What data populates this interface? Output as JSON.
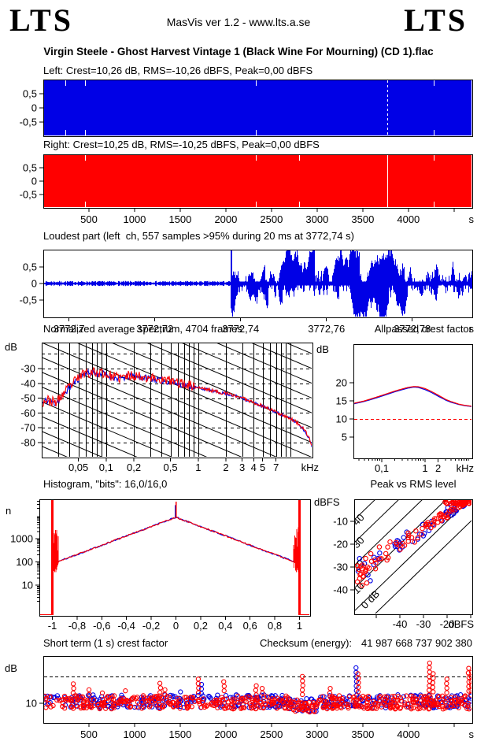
{
  "header": {
    "logo_left": "LTS",
    "logo_right": "LTS",
    "app_line": "MasVis ver 1.2 - www.lts.a.se",
    "file_title": "Virgin Steele - Ghost Harvest Vintage 1 (Black Wine For Mourning) (CD 1).flac"
  },
  "colors": {
    "left_channel": "#0000e6",
    "right_channel": "#ff0000",
    "grid": "#000000",
    "threshold": "#ff0000"
  },
  "chart_data": [
    {
      "id": "wave-left",
      "type": "waveform-overview",
      "channel": "left",
      "title": "Left: Crest=10,26 dB, RMS=-10,26 dBFS, Peak=0,00 dBFS",
      "color": "#0000e6",
      "xlim": [
        0,
        4700
      ],
      "ylim": [
        -1,
        1
      ],
      "yticks": {
        "values": [
          0.5,
          0,
          -0.5
        ],
        "labels": [
          "0,5",
          "0",
          "-0,5"
        ]
      },
      "gap_times": [
        241,
        457,
        2328,
        4277
      ],
      "marker_time": 3772.74,
      "marker_style": "dashed"
    },
    {
      "id": "wave-right",
      "type": "waveform-overview",
      "channel": "right",
      "title": "Right: Crest=10,25 dB, RMS=-10,25 dBFS, Peak=0,00 dBFS",
      "color": "#ff0000",
      "xlim": [
        0,
        4700
      ],
      "ylim": [
        -1,
        1
      ],
      "yticks": {
        "values": [
          0.5,
          0,
          -0.5
        ],
        "labels": [
          "0,5",
          "0",
          "-0,5"
        ]
      },
      "xticks": {
        "values": [
          500,
          1000,
          1500,
          2000,
          2500,
          3000,
          3500,
          4000,
          4500
        ],
        "labels": [
          "500",
          "1000",
          "1500",
          "2000",
          "2500",
          "3000",
          "3500",
          "4000",
          ""
        ]
      },
      "xlabel": "s",
      "gap_times": [
        457,
        2328,
        2803,
        4277
      ],
      "marker_time": 3772.74,
      "marker_style": "solid"
    },
    {
      "id": "loudest",
      "type": "waveform-zoom",
      "title": "Loudest part (left  ch, 557 samples >95% during 20 ms at 3772,74 s)",
      "color": "#0000e6",
      "xlim": [
        3772.694,
        3772.794
      ],
      "ylim": [
        -1,
        1
      ],
      "quiet_until": 3772.7375,
      "quiet_amplitude": 0.06,
      "yticks": {
        "values": [
          0.5,
          0,
          -0.5
        ],
        "labels": [
          "0,5",
          "0",
          "-0,5"
        ]
      },
      "xticks": {
        "values": [
          3772.7,
          3772.72,
          3772.74,
          3772.76,
          3772.78
        ],
        "labels": [
          "3772,7",
          "3772,72",
          "3772,74",
          "3772,76",
          "3772,78"
        ]
      },
      "xlabel": "s",
      "seed": 7
    },
    {
      "id": "spectrum",
      "type": "spectrum",
      "title": "Normalized average spectrum, 4704 frames",
      "ylabel": "dB",
      "xlabel": "kHz",
      "xlog": true,
      "xlim": [
        0.02,
        17.5
      ],
      "ylim": [
        -90,
        -12.3
      ],
      "yticks": {
        "values": [
          -30,
          -40,
          -50,
          -60,
          -70,
          -80
        ],
        "labels": [
          "-30",
          "-40",
          "-50",
          "-60",
          "-70",
          "-80"
        ]
      },
      "xticks": {
        "values": [
          0.05,
          0.1,
          0.2,
          0.5,
          1,
          2,
          3,
          4,
          5,
          7
        ],
        "labels": [
          "0,05",
          "0,1",
          "0,2",
          "0,5",
          "1",
          "2",
          "3",
          "4",
          "5",
          "7"
        ]
      },
      "grid_freqs": [
        0.03,
        0.04,
        0.05,
        0.06,
        0.07,
        0.08,
        0.09,
        0.1,
        0.2,
        0.3,
        0.4,
        0.5,
        0.6,
        0.7,
        0.8,
        0.9,
        1,
        2,
        3,
        4,
        5,
        6,
        7,
        8,
        9,
        10
      ],
      "dashed_levels": [
        -20,
        -30,
        -40,
        -50,
        -60,
        -70,
        -80
      ],
      "diagonal_grid": true,
      "anchors": [
        [
          0.02,
          -54
        ],
        [
          0.022,
          -51.5
        ],
        [
          0.025,
          -52.5
        ],
        [
          0.028,
          -53.5
        ],
        [
          0.03,
          -52
        ],
        [
          0.033,
          -49
        ],
        [
          0.036,
          -46
        ],
        [
          0.04,
          -43
        ],
        [
          0.045,
          -39.5
        ],
        [
          0.05,
          -37
        ],
        [
          0.055,
          -34.5
        ],
        [
          0.06,
          -32.5
        ],
        [
          0.065,
          -33.5
        ],
        [
          0.07,
          -32
        ],
        [
          0.08,
          -34
        ],
        [
          0.09,
          -33
        ],
        [
          0.1,
          -34.5
        ],
        [
          0.12,
          -36
        ],
        [
          0.14,
          -37
        ],
        [
          0.17,
          -35.5
        ],
        [
          0.2,
          -35
        ],
        [
          0.25,
          -36
        ],
        [
          0.3,
          -36.5
        ],
        [
          0.35,
          -37.5
        ],
        [
          0.4,
          -38
        ],
        [
          0.5,
          -39
        ],
        [
          0.6,
          -40
        ],
        [
          0.7,
          -41
        ],
        [
          0.8,
          -41.5
        ],
        [
          0.9,
          -42.5
        ],
        [
          1,
          -43
        ],
        [
          1.2,
          -44
        ],
        [
          1.5,
          -45.5
        ],
        [
          2,
          -47
        ],
        [
          2.5,
          -48.5
        ],
        [
          3,
          -50
        ],
        [
          3.5,
          -51.5
        ],
        [
          4,
          -53
        ],
        [
          5,
          -55.5
        ],
        [
          6,
          -57.5
        ],
        [
          7,
          -59.5
        ],
        [
          8,
          -61
        ],
        [
          9,
          -62.5
        ],
        [
          10,
          -64
        ],
        [
          11,
          -65.5
        ],
        [
          12,
          -67
        ],
        [
          13,
          -69
        ],
        [
          14,
          -71.5
        ],
        [
          15,
          -74
        ],
        [
          16,
          -77
        ],
        [
          17,
          -82
        ],
        [
          17.5,
          -87
        ]
      ],
      "series": [
        {
          "name": "left",
          "color": "#0000e6",
          "noise_low": 2.2,
          "noise_high": 1.0,
          "bias": 0.5,
          "seed": 11
        },
        {
          "name": "right",
          "color": "#ff0000",
          "noise_low": 3.4,
          "noise_high": 1.2,
          "bias": 0.42,
          "seed": 23
        }
      ]
    },
    {
      "id": "allpassed",
      "type": "line-log",
      "title": "Allpassed crest factor",
      "ylabel": "dB",
      "xlabel": "kHz",
      "xlim": [
        0.0222,
        12.4
      ],
      "ylim": [
        0,
        30.6
      ],
      "yticks": {
        "values": [
          20,
          15,
          10,
          5
        ],
        "labels": [
          "20",
          "15",
          "10",
          "5"
        ]
      },
      "xticks": {
        "values": [
          0.1,
          1,
          2
        ],
        "labels": [
          "0,1",
          "1",
          "2"
        ]
      },
      "minor_ticks": [
        0.03,
        0.04,
        0.05,
        0.06,
        0.07,
        0.08,
        0.09,
        0.1,
        0.2,
        0.3,
        0.4,
        0.5,
        0.6,
        0.7,
        0.8,
        0.9,
        1,
        2,
        3,
        4,
        5,
        6,
        7,
        8,
        9,
        10
      ],
      "threshold": 10,
      "series": [
        {
          "name": "left",
          "color": "#0000e6",
          "points": [
            [
              0.0222,
              14.15
            ],
            [
              0.04,
              14.85
            ],
            [
              0.07,
              15.7
            ],
            [
              0.1,
              16.3
            ],
            [
              0.15,
              17.0
            ],
            [
              0.2,
              17.5
            ],
            [
              0.3,
              18.1
            ],
            [
              0.4,
              18.5
            ],
            [
              0.55,
              18.8
            ],
            [
              0.7,
              18.7
            ],
            [
              1,
              18.1
            ],
            [
              1.4,
              17.3
            ],
            [
              2,
              16.3
            ],
            [
              3,
              15.2
            ],
            [
              4,
              14.6
            ],
            [
              6,
              14.0
            ],
            [
              8,
              13.7
            ],
            [
              12.4,
              13.4
            ]
          ]
        },
        {
          "name": "right",
          "color": "#ff0000",
          "points": [
            [
              0.0222,
              14.3
            ],
            [
              0.04,
              15.0
            ],
            [
              0.07,
              15.9
            ],
            [
              0.1,
              16.5
            ],
            [
              0.15,
              17.2
            ],
            [
              0.2,
              17.7
            ],
            [
              0.3,
              18.3
            ],
            [
              0.4,
              18.7
            ],
            [
              0.55,
              18.95
            ],
            [
              0.7,
              18.9
            ],
            [
              1,
              18.4
            ],
            [
              1.4,
              17.6
            ],
            [
              2,
              16.6
            ],
            [
              3,
              15.4
            ],
            [
              4,
              14.8
            ],
            [
              6,
              14.1
            ],
            [
              8,
              13.8
            ],
            [
              12.4,
              13.5
            ]
          ]
        }
      ]
    },
    {
      "id": "histogram",
      "type": "histogram",
      "title": "Histogram, \"bits\": 16,0/16,0",
      "ylabel": "n",
      "xlim": [
        -1.105,
        1.086
      ],
      "ylog": true,
      "yticks": {
        "values": [
          1000,
          100,
          10
        ],
        "labels": [
          "1000",
          "100",
          "10"
        ]
      },
      "xticks": {
        "values": [
          -1,
          -0.8,
          -0.6,
          -0.4,
          -0.2,
          0,
          0.2,
          0.4,
          0.6,
          0.8,
          1
        ],
        "labels": [
          "-1",
          "-0,8",
          "-0,6",
          "-0,4",
          "-0,2",
          "0",
          "0,2",
          "0,4",
          "0,6",
          "0,8",
          "1"
        ]
      },
      "dome": {
        "log10_at_zero": 3.92,
        "slope": 2.0,
        "xmax": 0.97
      },
      "center_spike": 39000,
      "edge_spike_top": 49000,
      "edge_noise": {
        "xmin": 0.952,
        "xmax": 0.999,
        "lo_log": 1.55,
        "hi_log": 2.2,
        "hi_span": 1.3
      },
      "colors": {
        "left": "#0000e6",
        "right": "#ff0000"
      },
      "seed": 5
    },
    {
      "id": "peak-rms",
      "type": "scatter-crest",
      "title": "Peak vs RMS level",
      "ylabel": "dBFS",
      "xlabel": "dBFS",
      "xlim": [
        -59.3,
        -9.3
      ],
      "ylim": [
        -50.7,
        -0.3
      ],
      "xticks": {
        "values": [
          -50,
          -40,
          -30,
          -20,
          -10
        ],
        "labels": [
          "",
          "-40",
          "-30",
          "-20",
          ""
        ]
      },
      "yticks": {
        "values": [
          -10,
          -20,
          -30,
          -40
        ],
        "labels": [
          "-10",
          "-20",
          "-30",
          "-40"
        ]
      },
      "diagonals": [
        0,
        10,
        20,
        30,
        40,
        50
      ],
      "diagonal_labels": [
        {
          "c": 0,
          "text": "0 dB"
        },
        {
          "c": 10,
          "text": "10"
        },
        {
          "c": 20,
          "text": "20"
        },
        {
          "c": 30,
          "text": "30"
        },
        {
          "c": 40,
          "text": "40"
        }
      ],
      "band": {
        "rms_min": -58,
        "rms_max": -10.5,
        "crest_base": 12,
        "crest_slope": 0.3,
        "jitter": 4.5
      },
      "counts": {
        "red_band": 95,
        "blue_band": 55,
        "red_blob": 42
      },
      "blob": {
        "rms_min": -21,
        "rms_max": -11.5,
        "peak_min": -2.4,
        "peak_max": -0.2
      },
      "outliers_red": [
        [
          -58,
          -29.5
        ],
        [
          -57.5,
          -31
        ],
        [
          -56.5,
          -33
        ],
        [
          -57,
          -35
        ],
        [
          -58,
          -36.5
        ],
        [
          -55.5,
          -34
        ],
        [
          -54.5,
          -31.5
        ],
        [
          -56,
          -38
        ],
        [
          -54,
          -37
        ],
        [
          -53,
          -30.5
        ],
        [
          -52,
          -27.5
        ]
      ],
      "outliers_blue": [
        [
          -55,
          -28.5
        ],
        [
          -53.5,
          -33.5
        ],
        [
          -52.5,
          -36
        ],
        [
          -51,
          -29
        ]
      ],
      "colors": {
        "left": "#0000e6",
        "right": "#ff0000"
      },
      "seed": 13
    },
    {
      "id": "shortterm",
      "type": "scatter-time",
      "title": "Short term (1 s) crest factor",
      "checksum_label": "Checksum (energy):",
      "checksum_value": "41 987 668 737 902 380",
      "ylabel": "dB",
      "xlabel": "s",
      "xlim": [
        0,
        4700
      ],
      "ylim": [
        2.6,
        27.6
      ],
      "xticks": {
        "values": [
          500,
          1000,
          1500,
          2000,
          2500,
          3000,
          3500,
          4000,
          4500
        ],
        "labels": [
          "500",
          "1000",
          "1500",
          "2000",
          "2500",
          "3000",
          "3500",
          "4000",
          ""
        ]
      },
      "yticks": {
        "values": [
          10
        ],
        "labels": [
          "10"
        ]
      },
      "threshold": 20,
      "baseline": {
        "min": 7.8,
        "spread": 5.0
      },
      "spikes": [
        [
          330,
          17.2,
          "right"
        ],
        [
          500,
          15,
          "right"
        ],
        [
          650,
          13.8,
          "right"
        ],
        [
          900,
          14.6,
          "right"
        ],
        [
          1280,
          17.4,
          "right"
        ],
        [
          1330,
          15,
          "right"
        ],
        [
          1500,
          14.2,
          "left"
        ],
        [
          1700,
          19,
          "right"
        ],
        [
          1730,
          17,
          "left"
        ],
        [
          1980,
          18,
          "right"
        ],
        [
          2330,
          16.5,
          "right"
        ],
        [
          2400,
          15.5,
          "right"
        ],
        [
          2840,
          20,
          "right"
        ],
        [
          3140,
          15.5,
          "right"
        ],
        [
          3430,
          23.2,
          "left"
        ],
        [
          3450,
          21,
          "right"
        ],
        [
          4230,
          25,
          "right"
        ],
        [
          4270,
          21,
          "right"
        ],
        [
          4420,
          19,
          "right"
        ],
        [
          4660,
          23,
          "right"
        ],
        [
          4690,
          21.5,
          "right"
        ]
      ],
      "colors": {
        "left": "#0000e6",
        "right": "#ff0000"
      },
      "seed": 17
    }
  ]
}
